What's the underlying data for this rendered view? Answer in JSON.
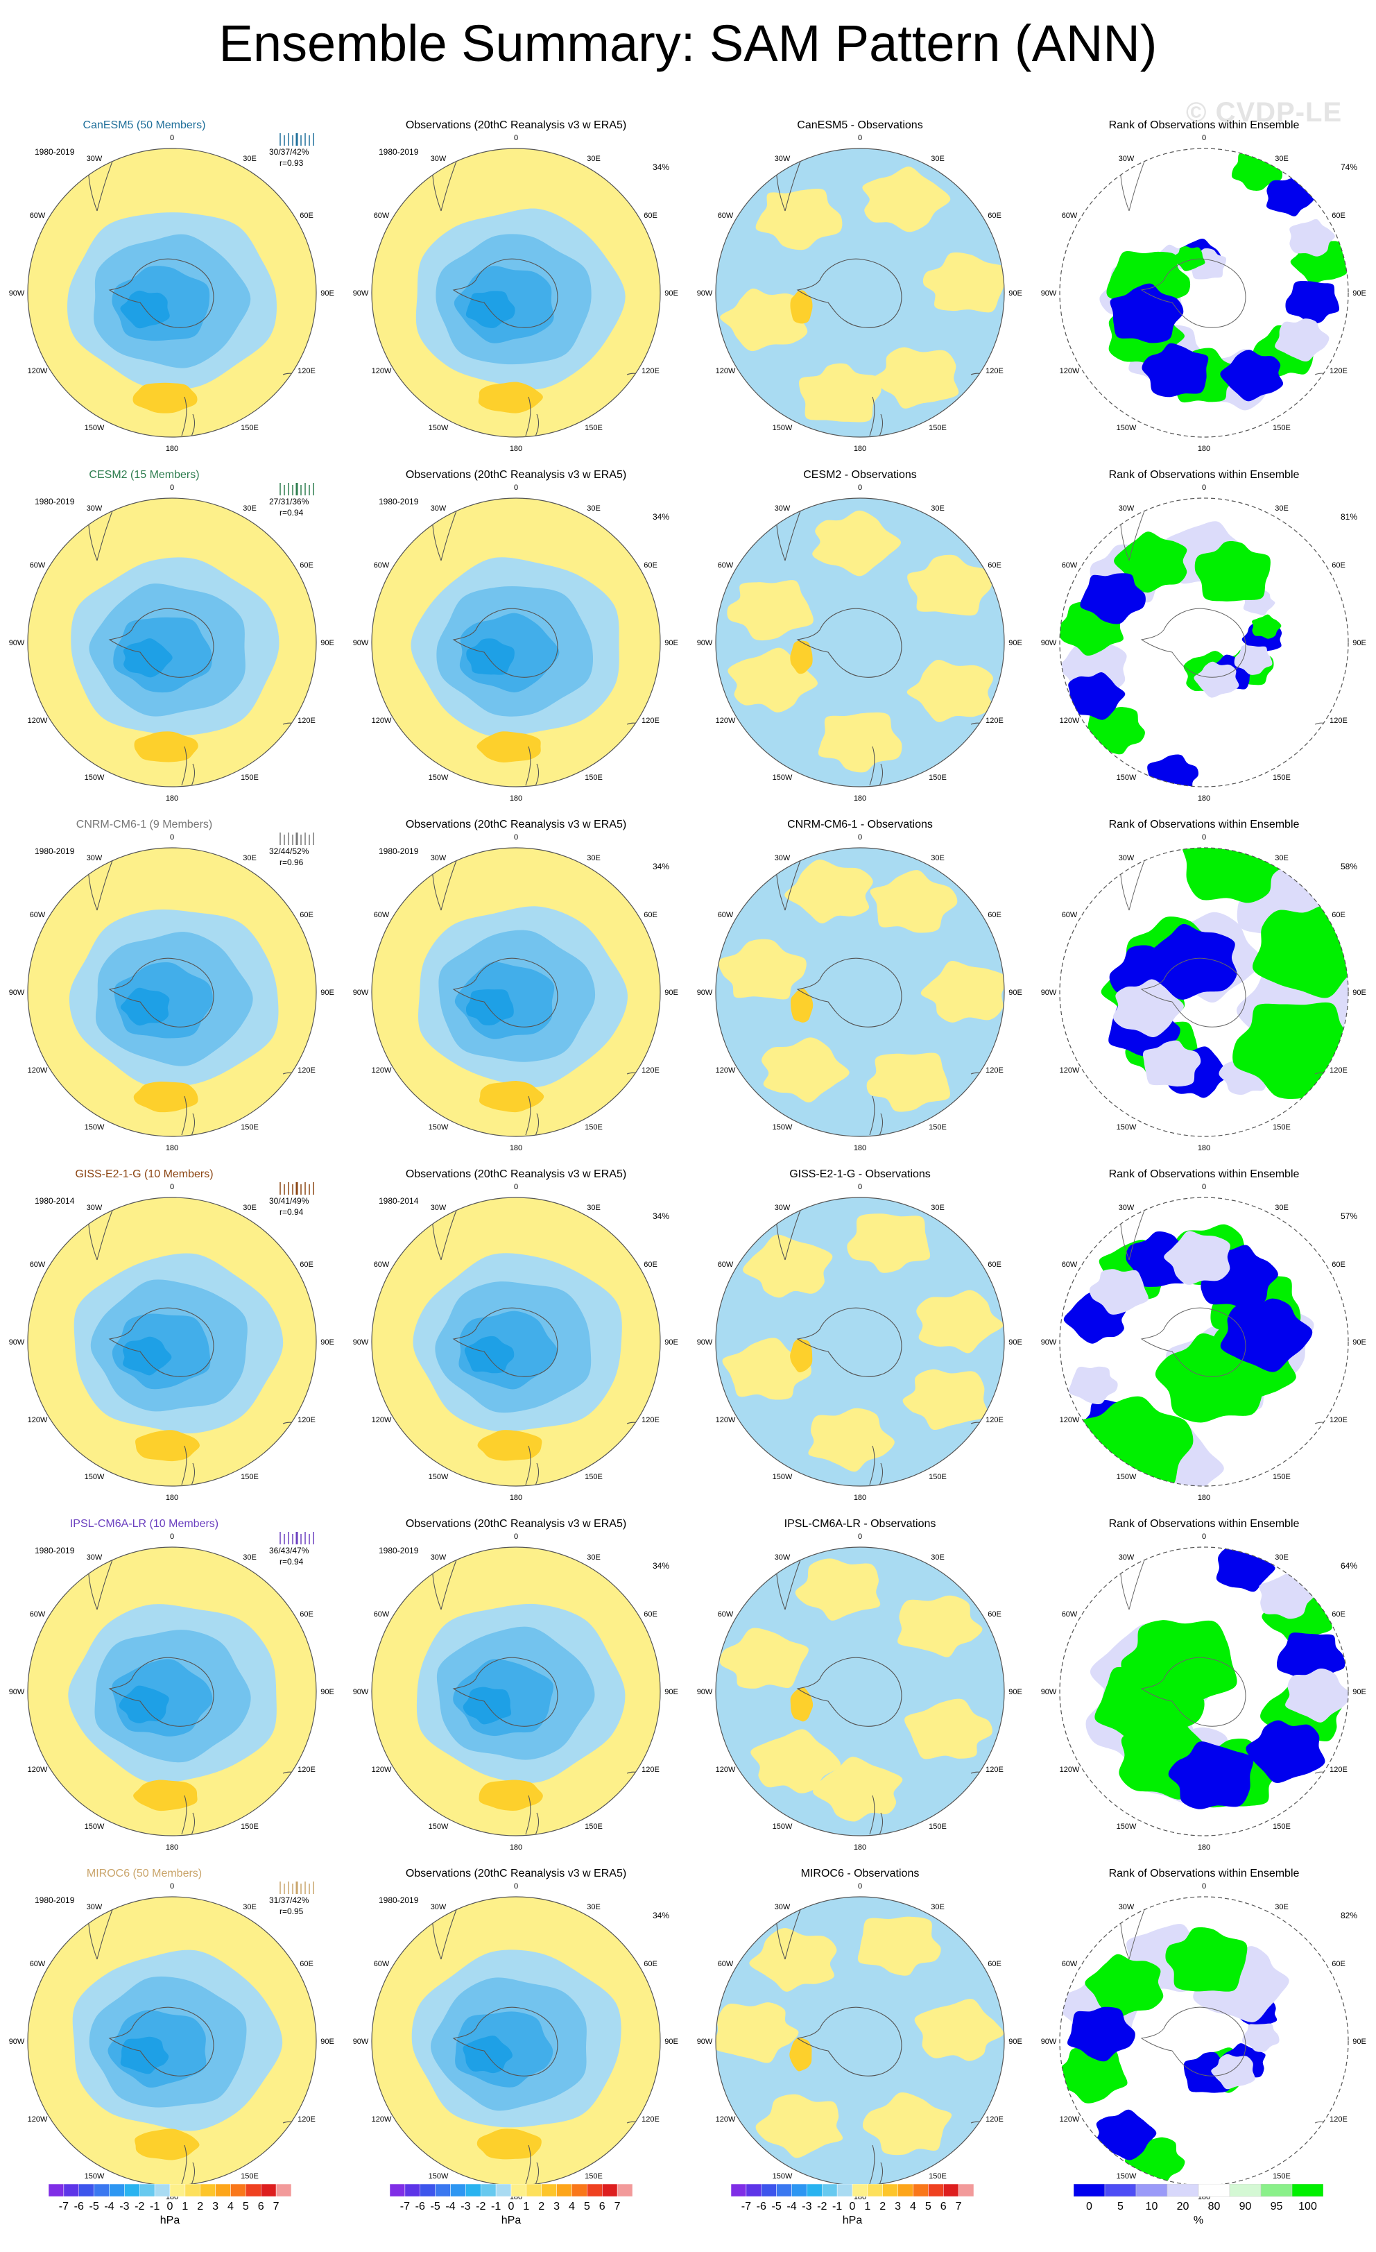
{
  "title": "Ensemble Summary: SAM Pattern (ANN)",
  "watermark": "© CVDP-LE",
  "lon_labels": [
    "0",
    "30E",
    "60E",
    "90E",
    "120E",
    "150E",
    "180",
    "150W",
    "120W",
    "90W",
    "60W",
    "30W"
  ],
  "obs_title": "Observations (20thC Reanalysis v3 w ERA5)",
  "rank_title": "Rank of Observations within Ensemble",
  "colors": {
    "yellow": "#fdf08a",
    "light_blue": "#a9dbf2",
    "mid_blue": "#73c3ee",
    "blue": "#42aeea",
    "deep_blue": "#1ea0e6",
    "orange": "#fdd02c",
    "rank_blue": "#0000ee",
    "rank_green": "#00f000"
  },
  "rows": [
    {
      "model": "CanESM5 (50 Members)",
      "model_color": "#1f6f9a",
      "period": "1980-2019",
      "stat_pct": "30/37/42%",
      "stat_r": "r=0.93",
      "obs_pct": "34%",
      "diff_title": "CanESM5 - Observations",
      "rank_pct": "74%",
      "obs_period": "1980-2019"
    },
    {
      "model": "CESM2 (15 Members)",
      "model_color": "#2e7d4f",
      "period": "1980-2019",
      "stat_pct": "27/31/36%",
      "stat_r": "r=0.94",
      "obs_pct": "34%",
      "diff_title": "CESM2 - Observations",
      "rank_pct": "81%",
      "obs_period": "1980-2019"
    },
    {
      "model": "CNRM-CM6-1 (9 Members)",
      "model_color": "#777777",
      "period": "1980-2019",
      "stat_pct": "32/44/52%",
      "stat_r": "r=0.96",
      "obs_pct": "34%",
      "diff_title": "CNRM-CM6-1 - Observations",
      "rank_pct": "58%",
      "obs_period": "1980-2019"
    },
    {
      "model": "GISS-E2-1-G (10 Members)",
      "model_color": "#8b4513",
      "period": "1980-2014",
      "stat_pct": "30/41/49%",
      "stat_r": "r=0.94",
      "obs_pct": "34%",
      "diff_title": "GISS-E2-1-G - Observations",
      "rank_pct": "57%",
      "obs_period": "1980-2014"
    },
    {
      "model": "IPSL-CM6A-LR (10 Members)",
      "model_color": "#6a3fbf",
      "period": "1980-2019",
      "stat_pct": "36/43/47%",
      "stat_r": "r=0.94",
      "obs_pct": "34%",
      "diff_title": "IPSL-CM6A-LR - Observations",
      "rank_pct": "64%",
      "obs_period": "1980-2019"
    },
    {
      "model": "MIROC6 (50 Members)",
      "model_color": "#c9a46a",
      "period": "1980-2019",
      "stat_pct": "31/37/42%",
      "stat_r": "r=0.95",
      "obs_pct": "34%",
      "diff_title": "MIROC6 - Observations",
      "rank_pct": "82%",
      "obs_period": "1980-2019"
    }
  ],
  "hpa_colorbar": {
    "unit": "hPa",
    "labels": [
      "-7",
      "-6",
      "-5",
      "-4",
      "-3",
      "-2",
      "-1",
      "0",
      "1",
      "2",
      "3",
      "4",
      "5",
      "6",
      "7"
    ],
    "colors": [
      "#7f2ee6",
      "#5d35e8",
      "#3d55ec",
      "#3a78f0",
      "#2d96f2",
      "#29b3f0",
      "#67c9ef",
      "#a9dbf2",
      "#fdf08a",
      "#fde05c",
      "#fdc52a",
      "#fda51a",
      "#f9771a",
      "#ef4120",
      "#dd1e1e",
      "#f29a9a"
    ]
  },
  "rank_colorbar": {
    "unit": "%",
    "labels": [
      "0",
      "5",
      "10",
      "20",
      "80",
      "90",
      "95",
      "100"
    ],
    "colors": [
      "#0000ee",
      "#4d4df5",
      "#9a9af8",
      "#d8d8fb",
      "#ffffff",
      "#d4f8d4",
      "#8af08a",
      "#00f000"
    ]
  }
}
